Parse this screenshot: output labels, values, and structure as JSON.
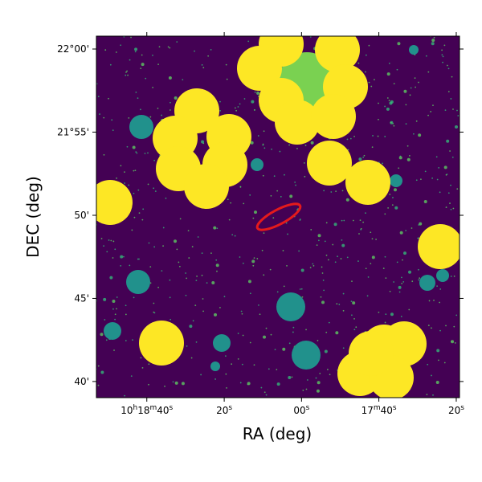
{
  "chart_data": {
    "type": "image",
    "xlabel": "RA (deg)",
    "ylabel": "DEC (deg)",
    "xlim": [
      154.721,
      154.3298
    ],
    "ylim": [
      21.6505,
      22.0129
    ],
    "xticks": [
      {
        "value": 154.6667,
        "label": "10h18m40s"
      },
      {
        "value": 154.5833,
        "label": "20s"
      },
      {
        "value": 154.5,
        "label": "00s"
      },
      {
        "value": 154.4167,
        "label": "17m40s"
      },
      {
        "value": 154.3333,
        "label": "20s"
      }
    ],
    "yticks": [
      {
        "value": 22.0,
        "label": "22°00'"
      },
      {
        "value": 21.9167,
        "label": "21°55'"
      },
      {
        "value": 21.8333,
        "label": "50'"
      },
      {
        "value": 21.75,
        "label": "45'"
      },
      {
        "value": 21.6667,
        "label": "40'"
      }
    ]
  }
}
